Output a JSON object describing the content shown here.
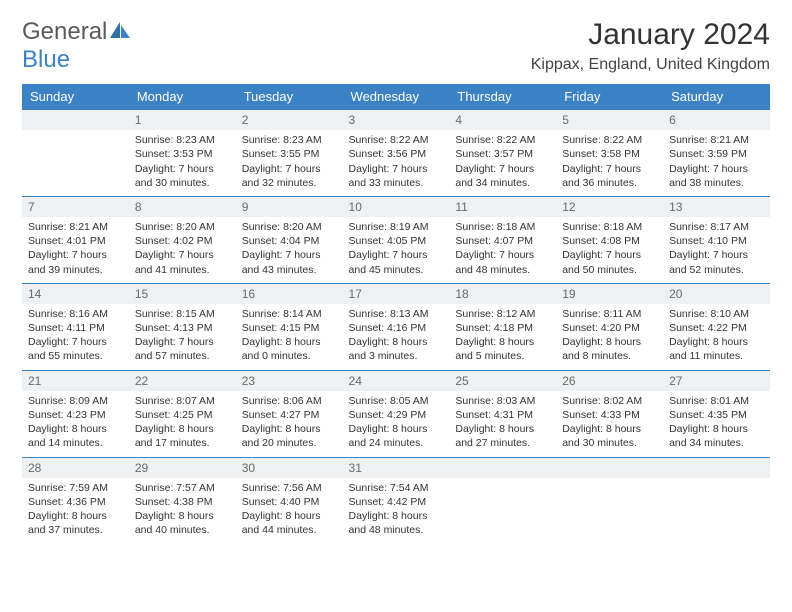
{
  "logo": {
    "part1": "General",
    "part2": "Blue"
  },
  "title": "January 2024",
  "location": "Kippax, England, United Kingdom",
  "colors": {
    "header_bg": "#3b82c4",
    "header_text": "#ffffff",
    "daynum_bg": "#eef0f1",
    "daynum_text": "#6a6a6a",
    "border": "#3b82c4",
    "body_text": "#333333"
  },
  "day_headers": [
    "Sunday",
    "Monday",
    "Tuesday",
    "Wednesday",
    "Thursday",
    "Friday",
    "Saturday"
  ],
  "weeks": [
    [
      {
        "num": "",
        "sunrise": "",
        "sunset": "",
        "daylight": ""
      },
      {
        "num": "1",
        "sunrise": "Sunrise: 8:23 AM",
        "sunset": "Sunset: 3:53 PM",
        "daylight": "Daylight: 7 hours and 30 minutes."
      },
      {
        "num": "2",
        "sunrise": "Sunrise: 8:23 AM",
        "sunset": "Sunset: 3:55 PM",
        "daylight": "Daylight: 7 hours and 32 minutes."
      },
      {
        "num": "3",
        "sunrise": "Sunrise: 8:22 AM",
        "sunset": "Sunset: 3:56 PM",
        "daylight": "Daylight: 7 hours and 33 minutes."
      },
      {
        "num": "4",
        "sunrise": "Sunrise: 8:22 AM",
        "sunset": "Sunset: 3:57 PM",
        "daylight": "Daylight: 7 hours and 34 minutes."
      },
      {
        "num": "5",
        "sunrise": "Sunrise: 8:22 AM",
        "sunset": "Sunset: 3:58 PM",
        "daylight": "Daylight: 7 hours and 36 minutes."
      },
      {
        "num": "6",
        "sunrise": "Sunrise: 8:21 AM",
        "sunset": "Sunset: 3:59 PM",
        "daylight": "Daylight: 7 hours and 38 minutes."
      }
    ],
    [
      {
        "num": "7",
        "sunrise": "Sunrise: 8:21 AM",
        "sunset": "Sunset: 4:01 PM",
        "daylight": "Daylight: 7 hours and 39 minutes."
      },
      {
        "num": "8",
        "sunrise": "Sunrise: 8:20 AM",
        "sunset": "Sunset: 4:02 PM",
        "daylight": "Daylight: 7 hours and 41 minutes."
      },
      {
        "num": "9",
        "sunrise": "Sunrise: 8:20 AM",
        "sunset": "Sunset: 4:04 PM",
        "daylight": "Daylight: 7 hours and 43 minutes."
      },
      {
        "num": "10",
        "sunrise": "Sunrise: 8:19 AM",
        "sunset": "Sunset: 4:05 PM",
        "daylight": "Daylight: 7 hours and 45 minutes."
      },
      {
        "num": "11",
        "sunrise": "Sunrise: 8:18 AM",
        "sunset": "Sunset: 4:07 PM",
        "daylight": "Daylight: 7 hours and 48 minutes."
      },
      {
        "num": "12",
        "sunrise": "Sunrise: 8:18 AM",
        "sunset": "Sunset: 4:08 PM",
        "daylight": "Daylight: 7 hours and 50 minutes."
      },
      {
        "num": "13",
        "sunrise": "Sunrise: 8:17 AM",
        "sunset": "Sunset: 4:10 PM",
        "daylight": "Daylight: 7 hours and 52 minutes."
      }
    ],
    [
      {
        "num": "14",
        "sunrise": "Sunrise: 8:16 AM",
        "sunset": "Sunset: 4:11 PM",
        "daylight": "Daylight: 7 hours and 55 minutes."
      },
      {
        "num": "15",
        "sunrise": "Sunrise: 8:15 AM",
        "sunset": "Sunset: 4:13 PM",
        "daylight": "Daylight: 7 hours and 57 minutes."
      },
      {
        "num": "16",
        "sunrise": "Sunrise: 8:14 AM",
        "sunset": "Sunset: 4:15 PM",
        "daylight": "Daylight: 8 hours and 0 minutes."
      },
      {
        "num": "17",
        "sunrise": "Sunrise: 8:13 AM",
        "sunset": "Sunset: 4:16 PM",
        "daylight": "Daylight: 8 hours and 3 minutes."
      },
      {
        "num": "18",
        "sunrise": "Sunrise: 8:12 AM",
        "sunset": "Sunset: 4:18 PM",
        "daylight": "Daylight: 8 hours and 5 minutes."
      },
      {
        "num": "19",
        "sunrise": "Sunrise: 8:11 AM",
        "sunset": "Sunset: 4:20 PM",
        "daylight": "Daylight: 8 hours and 8 minutes."
      },
      {
        "num": "20",
        "sunrise": "Sunrise: 8:10 AM",
        "sunset": "Sunset: 4:22 PM",
        "daylight": "Daylight: 8 hours and 11 minutes."
      }
    ],
    [
      {
        "num": "21",
        "sunrise": "Sunrise: 8:09 AM",
        "sunset": "Sunset: 4:23 PM",
        "daylight": "Daylight: 8 hours and 14 minutes."
      },
      {
        "num": "22",
        "sunrise": "Sunrise: 8:07 AM",
        "sunset": "Sunset: 4:25 PM",
        "daylight": "Daylight: 8 hours and 17 minutes."
      },
      {
        "num": "23",
        "sunrise": "Sunrise: 8:06 AM",
        "sunset": "Sunset: 4:27 PM",
        "daylight": "Daylight: 8 hours and 20 minutes."
      },
      {
        "num": "24",
        "sunrise": "Sunrise: 8:05 AM",
        "sunset": "Sunset: 4:29 PM",
        "daylight": "Daylight: 8 hours and 24 minutes."
      },
      {
        "num": "25",
        "sunrise": "Sunrise: 8:03 AM",
        "sunset": "Sunset: 4:31 PM",
        "daylight": "Daylight: 8 hours and 27 minutes."
      },
      {
        "num": "26",
        "sunrise": "Sunrise: 8:02 AM",
        "sunset": "Sunset: 4:33 PM",
        "daylight": "Daylight: 8 hours and 30 minutes."
      },
      {
        "num": "27",
        "sunrise": "Sunrise: 8:01 AM",
        "sunset": "Sunset: 4:35 PM",
        "daylight": "Daylight: 8 hours and 34 minutes."
      }
    ],
    [
      {
        "num": "28",
        "sunrise": "Sunrise: 7:59 AM",
        "sunset": "Sunset: 4:36 PM",
        "daylight": "Daylight: 8 hours and 37 minutes."
      },
      {
        "num": "29",
        "sunrise": "Sunrise: 7:57 AM",
        "sunset": "Sunset: 4:38 PM",
        "daylight": "Daylight: 8 hours and 40 minutes."
      },
      {
        "num": "30",
        "sunrise": "Sunrise: 7:56 AM",
        "sunset": "Sunset: 4:40 PM",
        "daylight": "Daylight: 8 hours and 44 minutes."
      },
      {
        "num": "31",
        "sunrise": "Sunrise: 7:54 AM",
        "sunset": "Sunset: 4:42 PM",
        "daylight": "Daylight: 8 hours and 48 minutes."
      },
      {
        "num": "",
        "sunrise": "",
        "sunset": "",
        "daylight": ""
      },
      {
        "num": "",
        "sunrise": "",
        "sunset": "",
        "daylight": ""
      },
      {
        "num": "",
        "sunrise": "",
        "sunset": "",
        "daylight": ""
      }
    ]
  ]
}
